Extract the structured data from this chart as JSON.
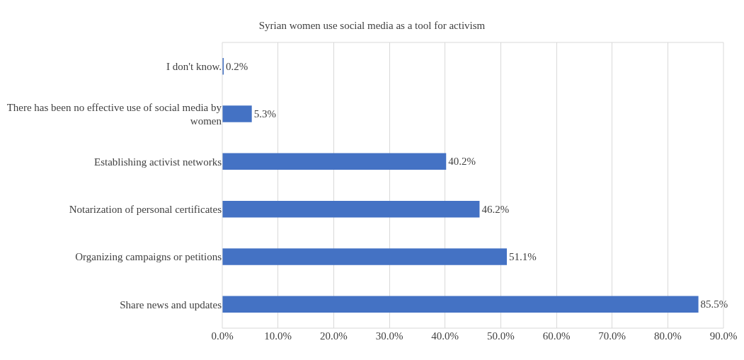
{
  "chart_data": {
    "type": "bar",
    "orientation": "horizontal",
    "title": "Syrian women use social media as a tool for activism",
    "categories": [
      "I don't know.",
      "There has been no effective use of social media by women",
      "Establishing activist networks",
      "Notarization of personal certificates",
      "Organizing campaigns or petitions",
      "Share news and updates"
    ],
    "values": [
      0.2,
      5.3,
      40.2,
      46.2,
      51.1,
      85.5
    ],
    "value_labels": [
      "0.2%",
      "5.3%",
      "40.2%",
      "46.2%",
      "51.1%",
      "85.5%"
    ],
    "color": "#4472c4",
    "xlim": [
      0,
      90
    ],
    "xticks": [
      {
        "value": 0,
        "label": "0.0%"
      },
      {
        "value": 10,
        "label": "10.0%"
      },
      {
        "value": 20,
        "label": "20.0%"
      },
      {
        "value": 30,
        "label": "30.0%"
      },
      {
        "value": 40,
        "label": "40.0%"
      },
      {
        "value": 50,
        "label": "50.0%"
      },
      {
        "value": 60,
        "label": "60.0%"
      },
      {
        "value": 70,
        "label": "70.0%"
      },
      {
        "value": 80,
        "label": "80.0%"
      },
      {
        "value": 90,
        "label": "90.0%"
      }
    ],
    "grid": "x",
    "legend": false
  }
}
